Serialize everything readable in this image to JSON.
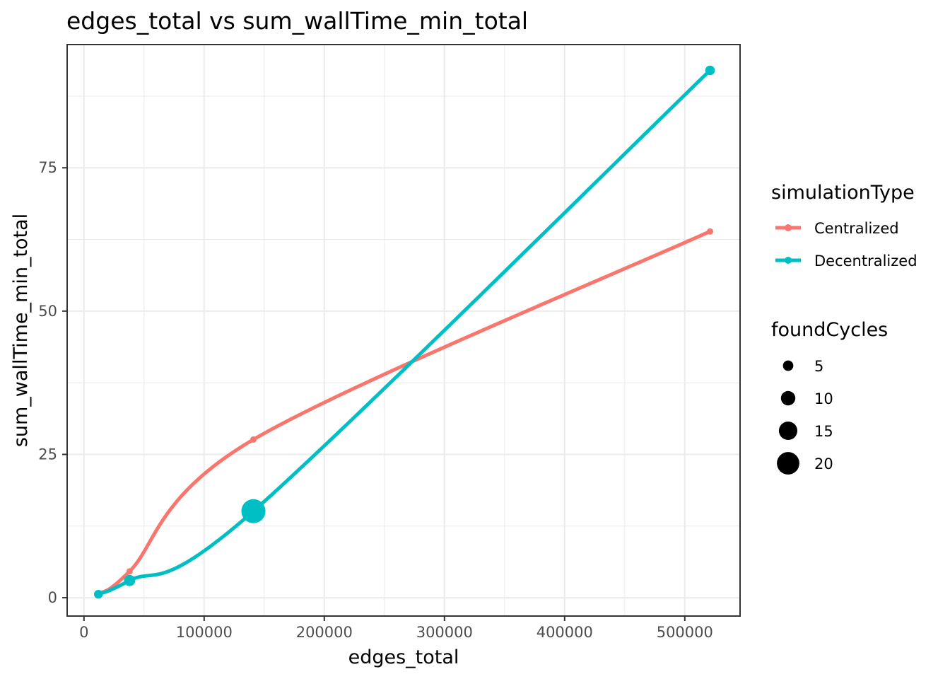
{
  "chart_data": {
    "type": "line",
    "title": "edges_total  vs  sum_wallTime_min_total",
    "xlabel": "edges_total",
    "ylabel": "sum_wallTime_min_total",
    "xlim": [
      -14000,
      546000
    ],
    "ylim": [
      -3.2,
      96.5
    ],
    "x_ticks": [
      0,
      100000,
      200000,
      300000,
      400000,
      500000
    ],
    "x_tick_labels": [
      "0",
      "100000",
      "200000",
      "300000",
      "400000",
      "500000"
    ],
    "y_ticks": [
      0,
      25,
      50,
      75
    ],
    "y_tick_labels": [
      "0",
      "25",
      "50",
      "75"
    ],
    "grid": true,
    "series": [
      {
        "name": "Centralized",
        "color": "#F8766D",
        "points": [
          {
            "x": 12000,
            "y": 0.7,
            "foundCycles": 0
          },
          {
            "x": 38000,
            "y": 4.6,
            "foundCycles": 0
          },
          {
            "x": 141000,
            "y": 27.6,
            "foundCycles": 0
          },
          {
            "x": 521000,
            "y": 63.9,
            "foundCycles": 0
          }
        ]
      },
      {
        "name": "Decentralized",
        "color": "#00BFC4",
        "points": [
          {
            "x": 12000,
            "y": 0.6,
            "foundCycles": 3
          },
          {
            "x": 38000,
            "y": 3.0,
            "foundCycles": 6
          },
          {
            "x": 141000,
            "y": 15.1,
            "foundCycles": 22
          },
          {
            "x": 521000,
            "y": 92.0,
            "foundCycles": 4
          }
        ]
      }
    ],
    "legend": {
      "position": "right",
      "color_title": "simulationType",
      "color_entries": [
        "Centralized",
        "Decentralized"
      ],
      "size_title": "foundCycles",
      "size_entries": [
        {
          "label": "5",
          "value": 5
        },
        {
          "label": "10",
          "value": 10
        },
        {
          "label": "15",
          "value": 15
        },
        {
          "label": "20",
          "value": 20
        }
      ]
    }
  }
}
